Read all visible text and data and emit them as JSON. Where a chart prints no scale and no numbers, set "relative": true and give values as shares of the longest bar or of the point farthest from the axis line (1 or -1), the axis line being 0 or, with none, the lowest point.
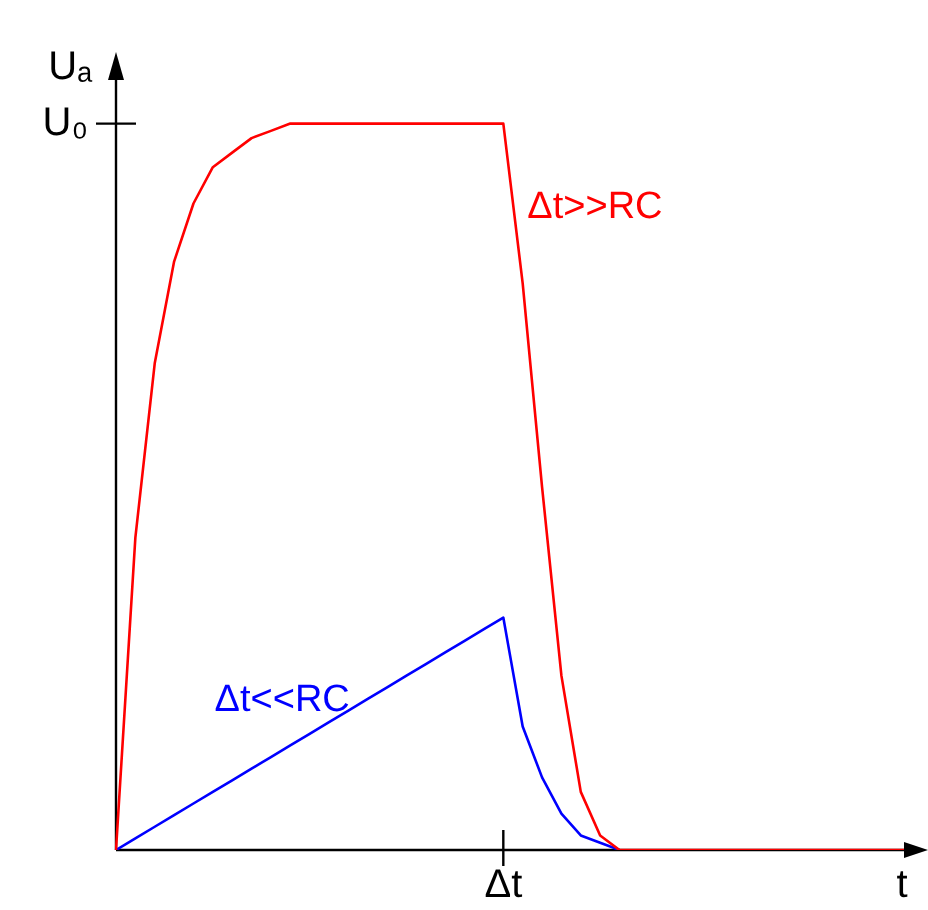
{
  "chart_data": {
    "type": "line",
    "relative": true,
    "xlabel": "t",
    "ylabel": "Uₐ",
    "legend": false,
    "marker": "none",
    "line_style": "solid",
    "categories": [
      null,
      null,
      null,
      null,
      null,
      null,
      null,
      null,
      null,
      null,
      null,
      null,
      null,
      null,
      null,
      null,
      null,
      null,
      null,
      null,
      null,
      null,
      null,
      null,
      null,
      null,
      null,
      null,
      null,
      null,
      null,
      null,
      null,
      null,
      null,
      null,
      null,
      null,
      null,
      null,
      null,
      null
    ],
    "annotations": [
      "U₀",
      "Δt"
    ],
    "series": [
      {
        "name": "Δt>>RC",
        "color": "#ff0000",
        "values": [
          0,
          0.43,
          0.67,
          0.81,
          0.89,
          0.94,
          0.96,
          0.98,
          0.99,
          1,
          1,
          1,
          1,
          1,
          1,
          1,
          1,
          1,
          1,
          1,
          1,
          0.78,
          0.5,
          0.24,
          0.08,
          0.02,
          0,
          0,
          0,
          0,
          0,
          0,
          0,
          0,
          0,
          0,
          0,
          0,
          0,
          0,
          0,
          0
        ]
      },
      {
        "name": "Δt<<RC",
        "color": "#0000ff",
        "values": [
          0,
          0.016,
          0.032,
          0.048,
          0.064,
          0.08,
          0.096,
          0.112,
          0.128,
          0.144,
          0.16,
          0.176,
          0.192,
          0.208,
          0.224,
          0.24,
          0.256,
          0.272,
          0.288,
          0.304,
          0.32,
          0.17,
          0.1,
          0.05,
          0.02,
          0.01,
          0,
          null,
          null,
          null,
          null,
          null,
          null,
          null,
          null,
          null,
          null,
          null,
          null,
          null,
          null,
          null
        ]
      }
    ]
  }
}
